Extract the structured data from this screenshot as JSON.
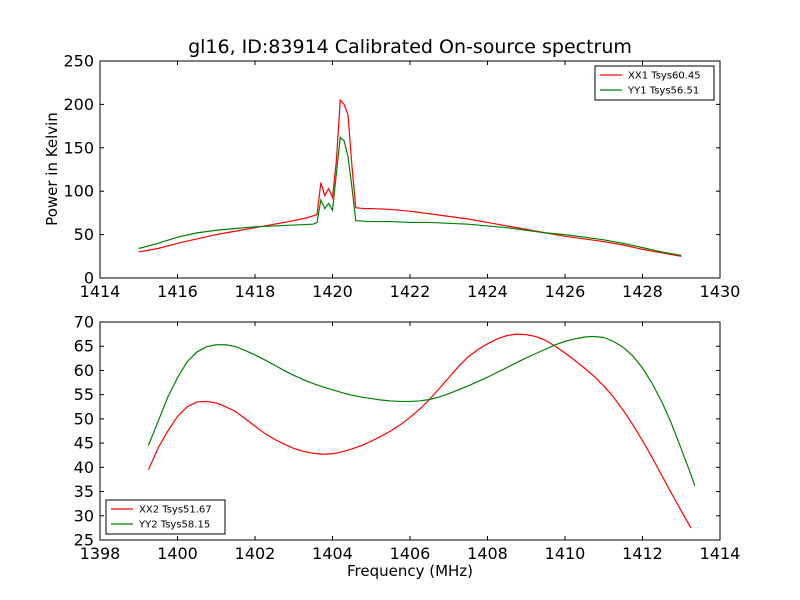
{
  "chart_data": [
    {
      "type": "line",
      "title": "gl16, ID:83914 Calibrated On-source spectrum",
      "xlabel": "",
      "ylabel": "Power in Kelvin",
      "xlim": [
        1414,
        1430
      ],
      "ylim": [
        0,
        250
      ],
      "xticks": [
        1414,
        1416,
        1418,
        1420,
        1422,
        1424,
        1426,
        1428,
        1430
      ],
      "yticks": [
        0,
        50,
        100,
        150,
        200,
        250
      ],
      "legend_position": "top-right",
      "series": [
        {
          "name": "XX1 Tsys60.45",
          "color": "#ff0000",
          "points": [
            [
              1415.0,
              30
            ],
            [
              1415.5,
              34
            ],
            [
              1416.0,
              40
            ],
            [
              1416.5,
              45
            ],
            [
              1417.0,
              50
            ],
            [
              1417.5,
              54
            ],
            [
              1418.0,
              58
            ],
            [
              1418.5,
              62
            ],
            [
              1419.0,
              66
            ],
            [
              1419.3,
              69
            ],
            [
              1419.6,
              73
            ],
            [
              1419.7,
              110
            ],
            [
              1419.8,
              95
            ],
            [
              1419.9,
              103
            ],
            [
              1420.0,
              93
            ],
            [
              1420.1,
              135
            ],
            [
              1420.2,
              205
            ],
            [
              1420.3,
              200
            ],
            [
              1420.4,
              188
            ],
            [
              1420.5,
              130
            ],
            [
              1420.6,
              81
            ],
            [
              1420.8,
              80
            ],
            [
              1421.0,
              80
            ],
            [
              1421.5,
              79
            ],
            [
              1422.0,
              77
            ],
            [
              1422.5,
              74
            ],
            [
              1423.0,
              71
            ],
            [
              1423.5,
              68
            ],
            [
              1424.0,
              64
            ],
            [
              1424.5,
              60
            ],
            [
              1425.0,
              56
            ],
            [
              1425.5,
              52
            ],
            [
              1426.0,
              48
            ],
            [
              1426.5,
              45
            ],
            [
              1427.0,
              42
            ],
            [
              1427.5,
              38
            ],
            [
              1428.0,
              33
            ],
            [
              1428.5,
              29
            ],
            [
              1429.0,
              25
            ]
          ]
        },
        {
          "name": "YY1 Tsys56.51",
          "color": "#008000",
          "points": [
            [
              1415.0,
              34
            ],
            [
              1415.5,
              40
            ],
            [
              1416.0,
              47
            ],
            [
              1416.5,
              52
            ],
            [
              1417.0,
              55
            ],
            [
              1417.5,
              57
            ],
            [
              1418.0,
              59
            ],
            [
              1418.5,
              60
            ],
            [
              1419.0,
              61
            ],
            [
              1419.5,
              62
            ],
            [
              1419.6,
              64
            ],
            [
              1419.7,
              90
            ],
            [
              1419.8,
              80
            ],
            [
              1419.9,
              86
            ],
            [
              1420.0,
              78
            ],
            [
              1420.1,
              120
            ],
            [
              1420.2,
              162
            ],
            [
              1420.3,
              158
            ],
            [
              1420.4,
              140
            ],
            [
              1420.5,
              105
            ],
            [
              1420.6,
              66
            ],
            [
              1421.0,
              65
            ],
            [
              1421.5,
              65
            ],
            [
              1422.0,
              64
            ],
            [
              1422.5,
              64
            ],
            [
              1423.0,
              63
            ],
            [
              1423.5,
              62
            ],
            [
              1424.0,
              60
            ],
            [
              1424.5,
              58
            ],
            [
              1425.0,
              55
            ],
            [
              1425.5,
              52
            ],
            [
              1426.0,
              50
            ],
            [
              1426.5,
              47
            ],
            [
              1427.0,
              44
            ],
            [
              1427.5,
              40
            ],
            [
              1428.0,
              35
            ],
            [
              1428.5,
              30
            ],
            [
              1429.0,
              26
            ]
          ]
        }
      ]
    },
    {
      "type": "line",
      "title": "",
      "xlabel": "Frequency (MHz)",
      "ylabel": "",
      "xlim": [
        1398,
        1414
      ],
      "ylim": [
        25,
        70
      ],
      "xticks": [
        1398,
        1400,
        1402,
        1404,
        1406,
        1408,
        1410,
        1412,
        1414
      ],
      "yticks": [
        25,
        30,
        35,
        40,
        45,
        50,
        55,
        60,
        65,
        70
      ],
      "legend_position": "bottom-left",
      "series": [
        {
          "name": "XX2 Tsys51.67",
          "color": "#ff0000",
          "points": [
            [
              1399.25,
              39.5
            ],
            [
              1399.5,
              44
            ],
            [
              1399.75,
              47.5
            ],
            [
              1400.0,
              50.5
            ],
            [
              1400.25,
              52.5
            ],
            [
              1400.5,
              53.5
            ],
            [
              1400.75,
              53.6
            ],
            [
              1401.0,
              53.3
            ],
            [
              1401.25,
              52.5
            ],
            [
              1401.5,
              51.5
            ],
            [
              1401.75,
              50.0
            ],
            [
              1402.0,
              48.5
            ],
            [
              1402.25,
              47.0
            ],
            [
              1402.5,
              45.8
            ],
            [
              1402.75,
              44.8
            ],
            [
              1403.0,
              43.9
            ],
            [
              1403.25,
              43.3
            ],
            [
              1403.5,
              42.9
            ],
            [
              1403.75,
              42.7
            ],
            [
              1404.0,
              42.8
            ],
            [
              1404.25,
              43.2
            ],
            [
              1404.5,
              43.8
            ],
            [
              1404.75,
              44.5
            ],
            [
              1405.0,
              45.4
            ],
            [
              1405.25,
              46.4
            ],
            [
              1405.5,
              47.5
            ],
            [
              1405.75,
              48.8
            ],
            [
              1406.0,
              50.3
            ],
            [
              1406.25,
              52.0
            ],
            [
              1406.5,
              54.0
            ],
            [
              1406.75,
              56.2
            ],
            [
              1407.0,
              58.5
            ],
            [
              1407.25,
              60.8
            ],
            [
              1407.5,
              62.8
            ],
            [
              1407.75,
              64.3
            ],
            [
              1408.0,
              65.5
            ],
            [
              1408.25,
              66.5
            ],
            [
              1408.5,
              67.2
            ],
            [
              1408.75,
              67.5
            ],
            [
              1409.0,
              67.4
            ],
            [
              1409.25,
              67.0
            ],
            [
              1409.5,
              66.2
            ],
            [
              1409.75,
              65.0
            ],
            [
              1410.0,
              63.6
            ],
            [
              1410.25,
              62.1
            ],
            [
              1410.5,
              60.5
            ],
            [
              1410.75,
              58.8
            ],
            [
              1411.0,
              56.8
            ],
            [
              1411.25,
              54.5
            ],
            [
              1411.5,
              51.8
            ],
            [
              1411.75,
              48.8
            ],
            [
              1412.0,
              45.5
            ],
            [
              1412.25,
              42.0
            ],
            [
              1412.5,
              38.3
            ],
            [
              1412.75,
              34.6
            ],
            [
              1413.0,
              31.0
            ],
            [
              1413.25,
              27.5
            ]
          ]
        },
        {
          "name": "YY2 Tsys58.15",
          "color": "#008000",
          "points": [
            [
              1399.25,
              44.5
            ],
            [
              1399.5,
              49.5
            ],
            [
              1399.75,
              54.5
            ],
            [
              1400.0,
              58.5
            ],
            [
              1400.25,
              61.8
            ],
            [
              1400.5,
              63.8
            ],
            [
              1400.75,
              64.9
            ],
            [
              1401.0,
              65.3
            ],
            [
              1401.25,
              65.3
            ],
            [
              1401.5,
              64.9
            ],
            [
              1401.75,
              64.1
            ],
            [
              1402.0,
              63.2
            ],
            [
              1402.25,
              62.2
            ],
            [
              1402.5,
              61.1
            ],
            [
              1402.75,
              60.0
            ],
            [
              1403.0,
              59.0
            ],
            [
              1403.25,
              58.1
            ],
            [
              1403.5,
              57.3
            ],
            [
              1403.75,
              56.6
            ],
            [
              1404.0,
              56.0
            ],
            [
              1404.25,
              55.4
            ],
            [
              1404.5,
              54.9
            ],
            [
              1404.75,
              54.5
            ],
            [
              1405.0,
              54.2
            ],
            [
              1405.25,
              53.9
            ],
            [
              1405.5,
              53.7
            ],
            [
              1405.75,
              53.6
            ],
            [
              1406.0,
              53.6
            ],
            [
              1406.25,
              53.7
            ],
            [
              1406.5,
              54.0
            ],
            [
              1406.75,
              54.5
            ],
            [
              1407.0,
              55.2
            ],
            [
              1407.25,
              56.0
            ],
            [
              1407.5,
              56.8
            ],
            [
              1407.75,
              57.7
            ],
            [
              1408.0,
              58.6
            ],
            [
              1408.25,
              59.6
            ],
            [
              1408.5,
              60.6
            ],
            [
              1408.75,
              61.6
            ],
            [
              1409.0,
              62.6
            ],
            [
              1409.25,
              63.5
            ],
            [
              1409.5,
              64.4
            ],
            [
              1409.75,
              65.3
            ],
            [
              1410.0,
              66.0
            ],
            [
              1410.25,
              66.5
            ],
            [
              1410.5,
              66.9
            ],
            [
              1410.75,
              67.0
            ],
            [
              1411.0,
              66.8
            ],
            [
              1411.25,
              66.0
            ],
            [
              1411.5,
              64.8
            ],
            [
              1411.75,
              63.0
            ],
            [
              1412.0,
              60.5
            ],
            [
              1412.25,
              57.3
            ],
            [
              1412.5,
              53.5
            ],
            [
              1412.75,
              49.0
            ],
            [
              1413.0,
              43.8
            ],
            [
              1413.25,
              38.5
            ],
            [
              1413.35,
              36.2
            ]
          ]
        }
      ]
    }
  ]
}
